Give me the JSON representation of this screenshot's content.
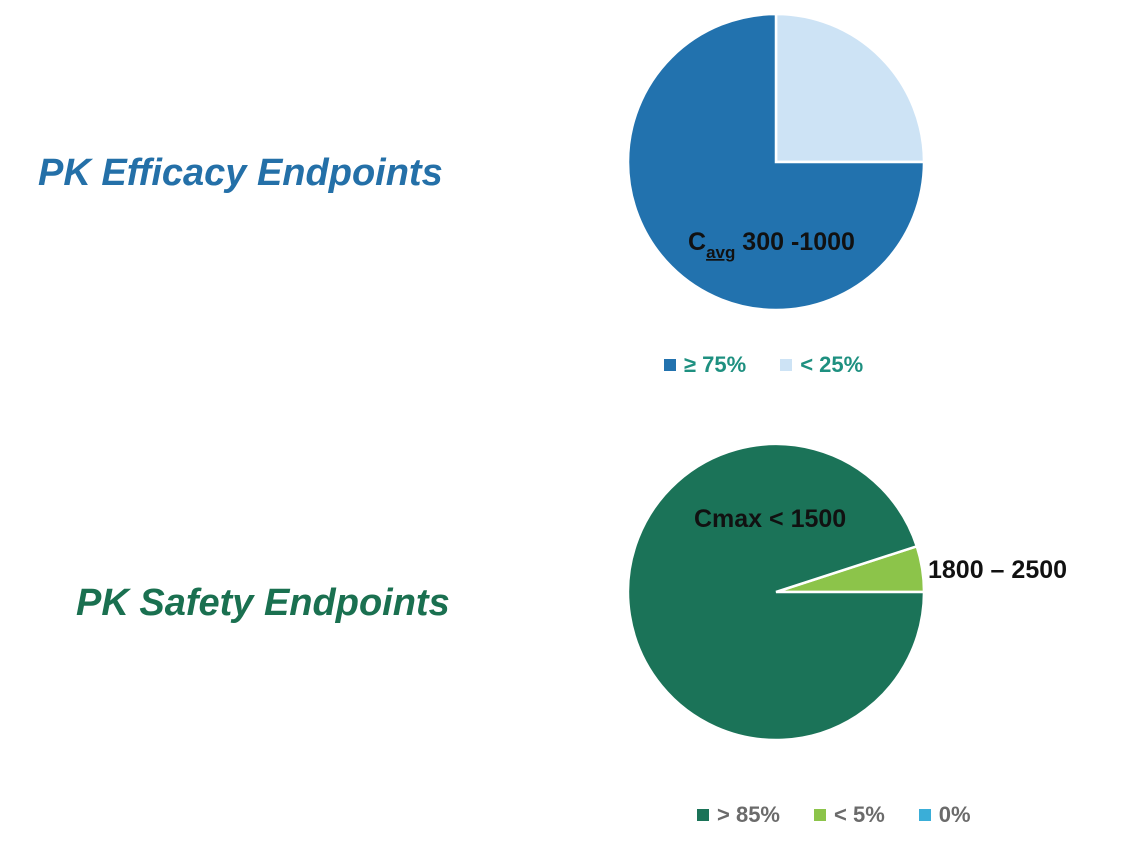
{
  "efficacy": {
    "heading": "PK Efficacy Endpoints"
  },
  "safety": {
    "heading": "PK Safety Endpoints"
  },
  "chart_data": [
    {
      "type": "pie",
      "title": "",
      "slices": [
        {
          "legend": "≥ 75%",
          "value": 75,
          "color": "#2272ae"
        },
        {
          "legend": "< 25%",
          "value": 25,
          "color": "#cde3f5"
        }
      ],
      "annotations": [
        {
          "text_main": "C",
          "text_sub": "avg",
          "text_rest": " 300 -1000",
          "slice": 0
        }
      ],
      "legend_placement": "bottom"
    },
    {
      "type": "pie",
      "title": "",
      "slices": [
        {
          "legend": "> 85%",
          "value": 95,
          "color": "#1b7358"
        },
        {
          "legend": "< 5%",
          "value": 5,
          "color": "#8cc44a"
        },
        {
          "legend": "0%",
          "value": 0,
          "color": "#3aaed8"
        }
      ],
      "annotations": [
        {
          "text": "Cmax < 1500",
          "slice": 0
        },
        {
          "text": "1800 – 2500",
          "slice": 1
        }
      ],
      "legend_placement": "bottom"
    }
  ]
}
